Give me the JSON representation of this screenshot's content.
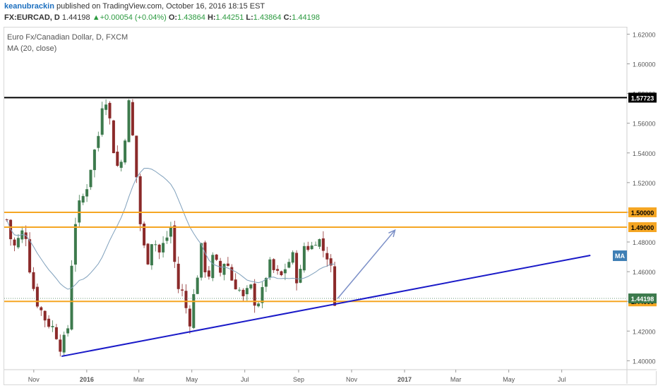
{
  "header": {
    "author": "keanubrackin",
    "published_text": "published on TradingView.com, October 16, 2016 18:15 EST",
    "symbol": "FX:EURCAD, D",
    "last": "1.44198",
    "change": "+0.00054 (+0.04%)",
    "open_label": "O:",
    "open": "1.43864",
    "high_label": "H:",
    "high": "1.44251",
    "low_label": "L:",
    "low": "1.43864",
    "close_label": "C:",
    "close": "1.44198"
  },
  "legend": {
    "title": "Euro Fx/Canadian Dollar, D, FXCM",
    "indicator": "MA (20, close)"
  },
  "colors": {
    "bull": "#3d7a4d",
    "bear": "#8b2a2a",
    "ma": "#7fa0bc",
    "resistance_black": "#000000",
    "orange": "#f5a623",
    "trendline": "#1a1ac8",
    "arrow": "#7b8fc7",
    "ma_tag": "#3f7fb5"
  },
  "chart_data": {
    "type": "candlestick",
    "x_ticks": [
      "Nov",
      "2016",
      "Mar",
      "May",
      "Jul",
      "Sep",
      "Nov",
      "2017",
      "Mar",
      "May",
      "Jul"
    ],
    "y_ticks": [
      "1.40000",
      "1.42000",
      "1.44000",
      "1.46000",
      "1.48000",
      "1.50000",
      "1.52000",
      "1.54000",
      "1.56000",
      "1.58000",
      "1.60000",
      "1.62000"
    ],
    "ylim": [
      1.394,
      1.624
    ],
    "horizontal_levels": [
      {
        "value": 1.57723,
        "label": "1.57723",
        "color": "#000000"
      },
      {
        "value": 1.5,
        "label": "1.50000",
        "color": "#f5a623"
      },
      {
        "value": 1.49,
        "label": "1.49000",
        "color": "#f5a623"
      },
      {
        "value": 1.44,
        "label": "1.44000",
        "color": "#f5a623"
      }
    ],
    "last_price": {
      "value": 1.44198,
      "label": "1.44198"
    },
    "ma_label": "MA",
    "price_path": [
      [
        "2015-10-01",
        1.495
      ],
      [
        "2015-10-08",
        1.475
      ],
      [
        "2015-10-15",
        1.482
      ],
      [
        "2015-10-22",
        1.49
      ],
      [
        "2015-10-29",
        1.455
      ],
      [
        "2015-11-05",
        1.44
      ],
      [
        "2015-11-12",
        1.43
      ],
      [
        "2015-11-19",
        1.425
      ],
      [
        "2015-11-26",
        1.42
      ],
      [
        "2015-12-03",
        1.408
      ],
      [
        "2015-12-10",
        1.42
      ],
      [
        "2015-12-17",
        1.49
      ],
      [
        "2015-12-24",
        1.505
      ],
      [
        "2015-12-31",
        1.515
      ],
      [
        "2016-01-07",
        1.535
      ],
      [
        "2016-01-14",
        1.55
      ],
      [
        "2016-01-21",
        1.585
      ],
      [
        "2016-01-28",
        1.56
      ],
      [
        "2016-02-04",
        1.53
      ],
      [
        "2016-02-11",
        1.535
      ],
      [
        "2016-02-18",
        1.575
      ],
      [
        "2016-02-25",
        1.54
      ],
      [
        "2016-03-03",
        1.49
      ],
      [
        "2016-03-10",
        1.465
      ],
      [
        "2016-03-17",
        1.485
      ],
      [
        "2016-03-24",
        1.472
      ],
      [
        "2016-03-31",
        1.48
      ],
      [
        "2016-04-07",
        1.49
      ],
      [
        "2016-04-14",
        1.45
      ],
      [
        "2016-04-21",
        1.445
      ],
      [
        "2016-04-28",
        1.425
      ],
      [
        "2016-05-05",
        1.45
      ],
      [
        "2016-05-12",
        1.475
      ],
      [
        "2016-05-19",
        1.455
      ],
      [
        "2016-05-26",
        1.47
      ],
      [
        "2016-06-02",
        1.458
      ],
      [
        "2016-06-09",
        1.47
      ],
      [
        "2016-06-16",
        1.455
      ],
      [
        "2016-06-23",
        1.45
      ],
      [
        "2016-06-30",
        1.44
      ],
      [
        "2016-07-07",
        1.45
      ],
      [
        "2016-07-14",
        1.438
      ],
      [
        "2016-07-21",
        1.445
      ],
      [
        "2016-07-28",
        1.465
      ],
      [
        "2016-08-04",
        1.46
      ],
      [
        "2016-08-11",
        1.455
      ],
      [
        "2016-08-18",
        1.465
      ],
      [
        "2016-08-25",
        1.47
      ],
      [
        "2016-09-01",
        1.45
      ],
      [
        "2016-09-08",
        1.48
      ],
      [
        "2016-09-15",
        1.475
      ],
      [
        "2016-09-22",
        1.485
      ],
      [
        "2016-09-29",
        1.475
      ],
      [
        "2016-10-06",
        1.47
      ],
      [
        "2016-10-13",
        1.44
      ]
    ],
    "trendline": {
      "from": [
        "2015-12-03",
        1.403
      ],
      "to": [
        "2017-08-03",
        1.471
      ]
    },
    "projection_arrow": {
      "from": [
        "2016-10-16",
        1.442
      ],
      "to": [
        "2016-12-21",
        1.488
      ]
    }
  }
}
